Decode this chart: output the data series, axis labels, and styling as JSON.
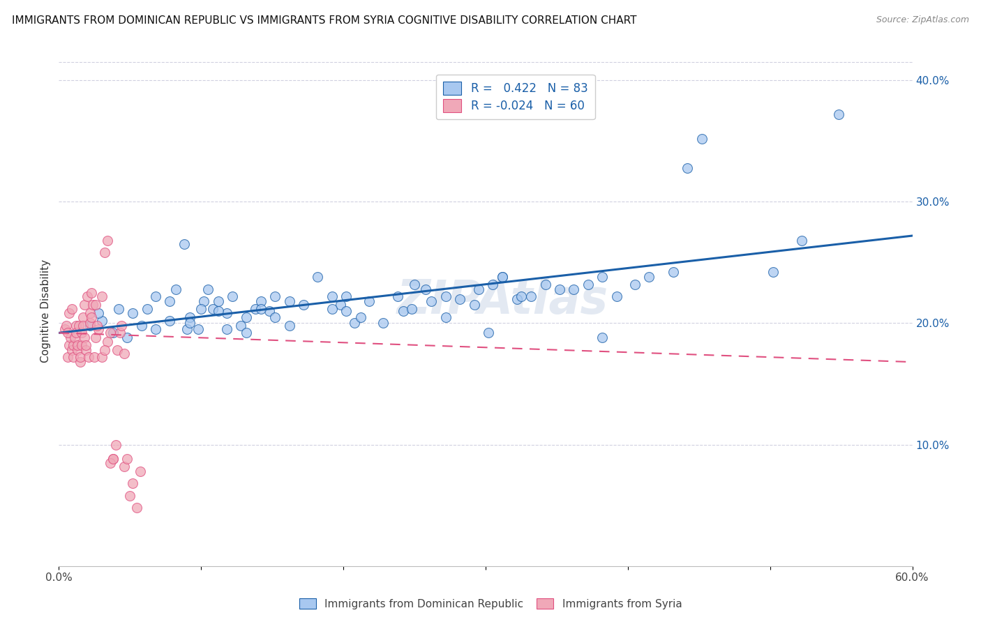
{
  "title": "IMMIGRANTS FROM DOMINICAN REPUBLIC VS IMMIGRANTS FROM SYRIA COGNITIVE DISABILITY CORRELATION CHART",
  "source": "Source: ZipAtlas.com",
  "ylabel": "Cognitive Disability",
  "xlim": [
    0.0,
    0.6
  ],
  "ylim": [
    0.0,
    0.42
  ],
  "r_blue": 0.422,
  "n_blue": 83,
  "r_pink": -0.024,
  "n_pink": 60,
  "legend_label_blue": "Immigrants from Dominican Republic",
  "legend_label_pink": "Immigrants from Syria",
  "watermark": "ZIPAtlas",
  "blue_scatter_x": [
    0.022,
    0.03,
    0.038,
    0.028,
    0.048,
    0.058,
    0.042,
    0.068,
    0.052,
    0.078,
    0.088,
    0.078,
    0.098,
    0.068,
    0.062,
    0.092,
    0.102,
    0.108,
    0.09,
    0.082,
    0.118,
    0.112,
    0.1,
    0.128,
    0.122,
    0.138,
    0.105,
    0.092,
    0.112,
    0.118,
    0.148,
    0.142,
    0.132,
    0.162,
    0.152,
    0.142,
    0.172,
    0.132,
    0.162,
    0.152,
    0.198,
    0.192,
    0.208,
    0.182,
    0.202,
    0.218,
    0.192,
    0.212,
    0.228,
    0.202,
    0.25,
    0.242,
    0.262,
    0.248,
    0.272,
    0.238,
    0.282,
    0.258,
    0.292,
    0.272,
    0.305,
    0.312,
    0.322,
    0.295,
    0.332,
    0.312,
    0.342,
    0.325,
    0.302,
    0.352,
    0.382,
    0.372,
    0.392,
    0.362,
    0.405,
    0.382,
    0.415,
    0.432,
    0.452,
    0.442,
    0.502,
    0.522,
    0.548
  ],
  "blue_scatter_y": [
    0.198,
    0.202,
    0.192,
    0.208,
    0.188,
    0.198,
    0.212,
    0.195,
    0.208,
    0.202,
    0.265,
    0.218,
    0.195,
    0.222,
    0.212,
    0.205,
    0.218,
    0.212,
    0.195,
    0.228,
    0.208,
    0.218,
    0.212,
    0.198,
    0.222,
    0.212,
    0.228,
    0.2,
    0.21,
    0.195,
    0.21,
    0.218,
    0.205,
    0.198,
    0.222,
    0.212,
    0.215,
    0.192,
    0.218,
    0.205,
    0.215,
    0.222,
    0.2,
    0.238,
    0.21,
    0.218,
    0.212,
    0.205,
    0.2,
    0.222,
    0.232,
    0.21,
    0.218,
    0.212,
    0.205,
    0.222,
    0.22,
    0.228,
    0.215,
    0.222,
    0.232,
    0.238,
    0.22,
    0.228,
    0.222,
    0.238,
    0.232,
    0.222,
    0.192,
    0.228,
    0.238,
    0.232,
    0.222,
    0.228,
    0.232,
    0.188,
    0.238,
    0.242,
    0.352,
    0.328,
    0.242,
    0.268,
    0.372
  ],
  "pink_scatter_x": [
    0.004,
    0.006,
    0.007,
    0.005,
    0.008,
    0.009,
    0.006,
    0.01,
    0.007,
    0.01,
    0.012,
    0.009,
    0.013,
    0.011,
    0.013,
    0.015,
    0.012,
    0.015,
    0.014,
    0.016,
    0.018,
    0.017,
    0.019,
    0.016,
    0.02,
    0.018,
    0.021,
    0.017,
    0.022,
    0.019,
    0.023,
    0.022,
    0.025,
    0.024,
    0.026,
    0.023,
    0.028,
    0.026,
    0.03,
    0.027,
    0.032,
    0.03,
    0.034,
    0.032,
    0.036,
    0.034,
    0.038,
    0.036,
    0.04,
    0.038,
    0.043,
    0.041,
    0.046,
    0.044,
    0.048,
    0.046,
    0.052,
    0.05,
    0.057,
    0.055
  ],
  "pink_scatter_y": [
    0.195,
    0.172,
    0.182,
    0.198,
    0.188,
    0.178,
    0.192,
    0.182,
    0.208,
    0.172,
    0.198,
    0.212,
    0.178,
    0.188,
    0.182,
    0.168,
    0.192,
    0.172,
    0.198,
    0.182,
    0.215,
    0.205,
    0.178,
    0.192,
    0.222,
    0.188,
    0.172,
    0.198,
    0.208,
    0.182,
    0.225,
    0.2,
    0.172,
    0.215,
    0.188,
    0.205,
    0.195,
    0.215,
    0.172,
    0.198,
    0.258,
    0.222,
    0.185,
    0.178,
    0.192,
    0.268,
    0.088,
    0.085,
    0.1,
    0.088,
    0.192,
    0.178,
    0.082,
    0.198,
    0.088,
    0.175,
    0.068,
    0.058,
    0.078,
    0.048
  ],
  "blue_color": "#a8c8f0",
  "pink_color": "#f0a8b8",
  "blue_line_color": "#1a5fa8",
  "pink_line_color": "#e05080",
  "grid_color": "#d0d0e0",
  "background_color": "#ffffff",
  "title_fontsize": 11,
  "axis_label_fontsize": 11,
  "tick_fontsize": 11,
  "legend_fontsize": 12,
  "blue_line_x": [
    0.0,
    0.6
  ],
  "blue_line_y": [
    0.192,
    0.272
  ],
  "pink_line_x": [
    0.0,
    0.6
  ],
  "pink_line_y": [
    0.192,
    0.168
  ]
}
